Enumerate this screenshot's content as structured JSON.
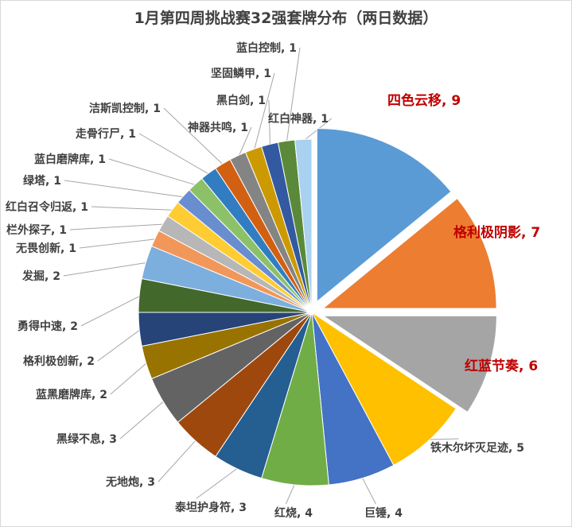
{
  "chart_data": {
    "type": "pie",
    "title": "1月第四周挑战赛32强套牌分布（两日数据）",
    "slices": [
      {
        "name": "四色云移",
        "value": 9,
        "label": "四色云移, 9",
        "color": "#5b9bd5",
        "exploded": true,
        "highlight": true
      },
      {
        "name": "格利极阴影",
        "value": 7,
        "label": "格利极阴影, 7",
        "color": "#ed7d31",
        "exploded": true,
        "highlight": true
      },
      {
        "name": "红蓝节奏",
        "value": 6,
        "label": "红蓝节奏, 6",
        "color": "#a5a5a5",
        "exploded": true,
        "highlight": true
      },
      {
        "name": "铁木尔坏灭足迹",
        "value": 5,
        "label": "铁木尔坏灭足迹, 5",
        "color": "#ffc000",
        "exploded": false,
        "highlight": false
      },
      {
        "name": "巨锤",
        "value": 4,
        "label": "巨锤, 4",
        "color": "#4472c4",
        "exploded": false,
        "highlight": false
      },
      {
        "name": "红烧",
        "value": 4,
        "label": "红烧, 4",
        "color": "#70ad47",
        "exploded": false,
        "highlight": false
      },
      {
        "name": "泰坦护身符",
        "value": 3,
        "label": "泰坦护身符, 3",
        "color": "#255e91",
        "exploded": false,
        "highlight": false
      },
      {
        "name": "无地炮",
        "value": 3,
        "label": "无地炮, 3",
        "color": "#9e480e",
        "exploded": false,
        "highlight": false
      },
      {
        "name": "黑绿不息",
        "value": 3,
        "label": "黑绿不息, 3",
        "color": "#636363",
        "exploded": false,
        "highlight": false
      },
      {
        "name": "蓝黑磨牌库",
        "value": 2,
        "label": "蓝黑磨牌库, 2",
        "color": "#997300",
        "exploded": false,
        "highlight": false
      },
      {
        "name": "格利极创新",
        "value": 2,
        "label": "格利极创新, 2",
        "color": "#264478",
        "exploded": false,
        "highlight": false
      },
      {
        "name": "勇得中速",
        "value": 2,
        "label": "勇得中速, 2",
        "color": "#43682b",
        "exploded": false,
        "highlight": false
      },
      {
        "name": "发掘",
        "value": 2,
        "label": "发掘, 2",
        "color": "#7cafdd",
        "exploded": false,
        "highlight": false
      },
      {
        "name": "无畏创新",
        "value": 1,
        "label": "无畏创新, 1",
        "color": "#f1975a",
        "exploded": false,
        "highlight": false
      },
      {
        "name": "栏外探子",
        "value": 1,
        "label": "栏外探子, 1",
        "color": "#b7b7b7",
        "exploded": false,
        "highlight": false
      },
      {
        "name": "红白召令归返",
        "value": 1,
        "label": "红白召令归返, 1",
        "color": "#ffcd33",
        "exploded": false,
        "highlight": false
      },
      {
        "name": "绿塔",
        "value": 1,
        "label": "绿塔, 1",
        "color": "#698ed0",
        "exploded": false,
        "highlight": false
      },
      {
        "name": "蓝白磨牌库",
        "value": 1,
        "label": "蓝白磨牌库, 1",
        "color": "#8cc168",
        "exploded": false,
        "highlight": false
      },
      {
        "name": "走骨行尸",
        "value": 1,
        "label": "走骨行尸, 1",
        "color": "#327dc2",
        "exploded": false,
        "highlight": false
      },
      {
        "name": "洁斯凯控制",
        "value": 1,
        "label": "洁斯凯控制, 1",
        "color": "#d26012",
        "exploded": false,
        "highlight": false
      },
      {
        "name": "神器共鸣",
        "value": 1,
        "label": "神器共鸣, 1",
        "color": "#848484",
        "exploded": false,
        "highlight": false
      },
      {
        "name": "坚固鳞甲",
        "value": 1,
        "label": "坚固鳞甲, 1",
        "color": "#cc9a00",
        "exploded": false,
        "highlight": false
      },
      {
        "name": "黑白剑",
        "value": 1,
        "label": "黑白剑, 1",
        "color": "#335aa1",
        "exploded": false,
        "highlight": false
      },
      {
        "name": "蓝白控制",
        "value": 1,
        "label": "蓝白控制, 1",
        "color": "#5a8a39",
        "exploded": false,
        "highlight": false
      },
      {
        "name": "红白神器",
        "value": 1,
        "label": "红白神器, 1",
        "color": "#a9d1f0",
        "exploded": false,
        "highlight": false
      }
    ],
    "legend": "none",
    "data_labels": "category name and value"
  }
}
